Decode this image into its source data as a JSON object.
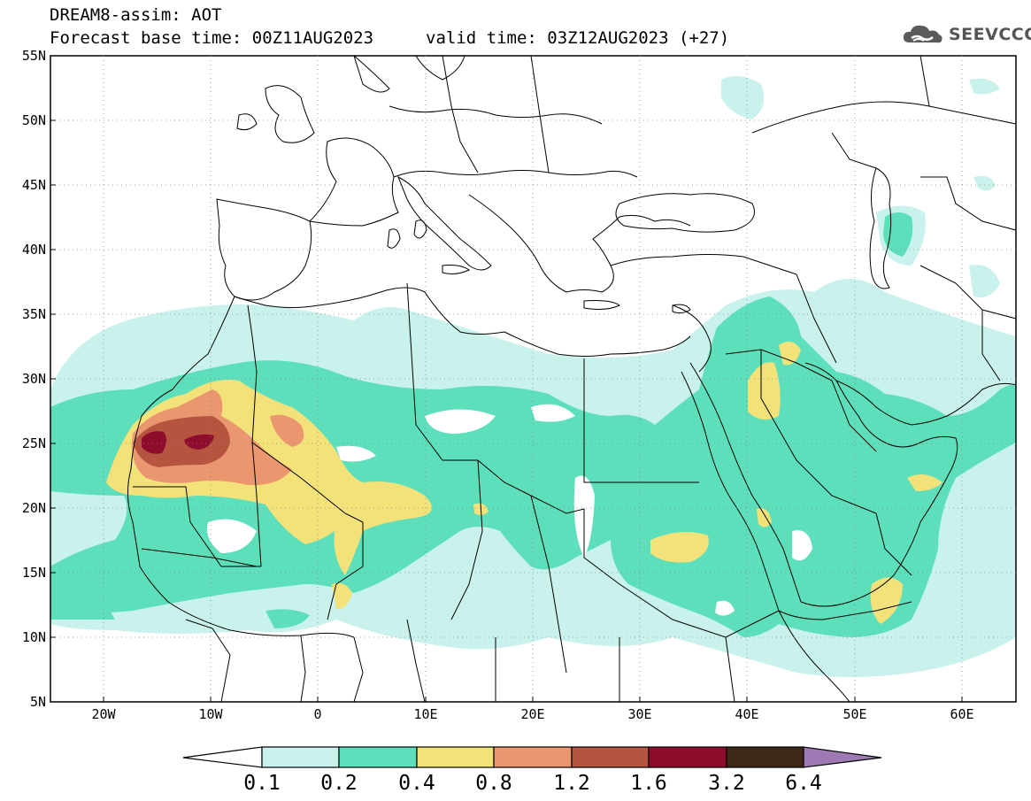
{
  "header": {
    "title": "DREAM8-assim: AOT",
    "base_time": "Forecast base time: 00Z11AUG2023",
    "valid_time": "valid time: 03Z12AUG2023 (+27)",
    "logo_text": "SEEVCCC"
  },
  "map": {
    "variable": "AOT",
    "lon_range": [
      -25,
      65
    ],
    "lat_range": [
      5,
      55
    ],
    "lat_ticks": [
      "55N",
      "50N",
      "45N",
      "40N",
      "35N",
      "30N",
      "25N",
      "20N",
      "15N",
      "10N",
      "5N"
    ],
    "lon_ticks": [
      "20W",
      "10W",
      "0",
      "10E",
      "20E",
      "30E",
      "40E",
      "50E",
      "60E"
    ]
  },
  "colorbar": {
    "labels": [
      "0.1",
      "0.2",
      "0.4",
      "0.8",
      "1.2",
      "1.6",
      "3.2",
      "6.4"
    ],
    "colors": [
      "#c9f2ec",
      "#5ddfbb",
      "#f3e27a",
      "#ea9770",
      "#b5553f",
      "#8e0d2c",
      "#3e2818",
      "#9e79b3"
    ],
    "under_color": "#ffffff"
  }
}
